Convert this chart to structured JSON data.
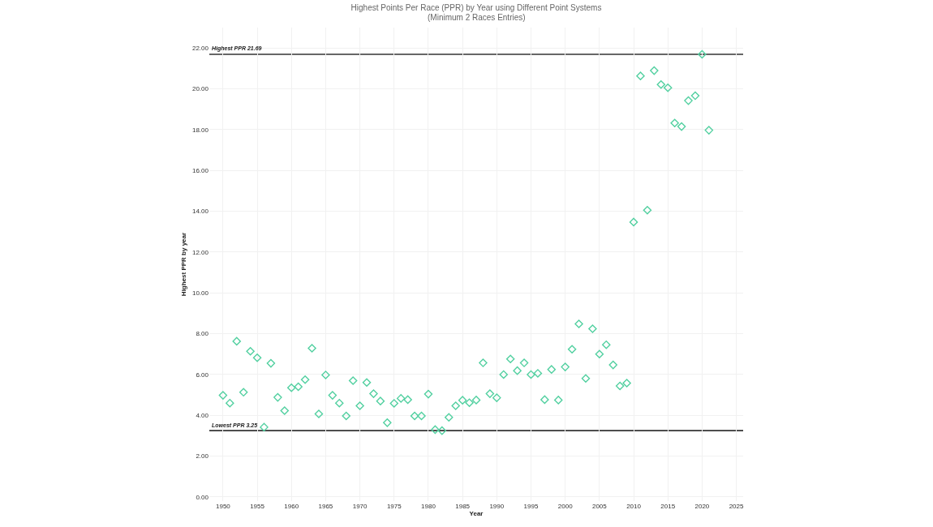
{
  "chart_data": {
    "type": "scatter",
    "title": "Highest Points Per Race (PPR) by Year using Different Point Systems",
    "subtitle": "(Minimum 2 Races Entries)",
    "xlabel": "Year",
    "ylabel": "Highest PPR by year",
    "x": [
      1950,
      1951,
      1952,
      1953,
      1954,
      1955,
      1956,
      1957,
      1958,
      1959,
      1960,
      1961,
      1962,
      1963,
      1964,
      1965,
      1966,
      1967,
      1968,
      1969,
      1970,
      1971,
      1972,
      1973,
      1974,
      1975,
      1976,
      1977,
      1978,
      1979,
      1980,
      1981,
      1982,
      1983,
      1984,
      1985,
      1986,
      1987,
      1988,
      1989,
      1990,
      1991,
      1992,
      1993,
      1994,
      1995,
      1996,
      1997,
      1998,
      1999,
      2000,
      2001,
      2002,
      2003,
      2004,
      2005,
      2006,
      2007,
      2008,
      2009,
      2010,
      2011,
      2012,
      2013,
      2014,
      2015,
      2016,
      2017,
      2018,
      2019,
      2020,
      2021
    ],
    "series": [
      {
        "color": "#52d0a0",
        "values": [
          4.98,
          4.6,
          7.63,
          5.13,
          7.14,
          6.82,
          3.42,
          6.55,
          4.88,
          4.23,
          5.35,
          5.4,
          5.75,
          7.29,
          4.07,
          5.98,
          4.98,
          4.6,
          3.97,
          5.7,
          4.47,
          5.61,
          5.06,
          4.7,
          3.64,
          4.59,
          4.83,
          4.77,
          3.97,
          3.97,
          5.04,
          3.3,
          3.25,
          3.9,
          4.47,
          4.74,
          4.62,
          4.75,
          6.57,
          5.06,
          4.86,
          6.0,
          6.76,
          6.19,
          6.57,
          6.0,
          6.06,
          4.77,
          6.25,
          4.75,
          6.37,
          7.24,
          8.48,
          5.81,
          8.24,
          7.0,
          7.46,
          6.47,
          5.44,
          5.58,
          13.47,
          20.63,
          14.05,
          20.89,
          20.21,
          20.05,
          18.32,
          18.15,
          19.42,
          19.66,
          21.69,
          17.97
        ]
      }
    ],
    "xlim": [
      1948,
      2026
    ],
    "xticks": [
      1950,
      1955,
      1960,
      1965,
      1970,
      1975,
      1980,
      1985,
      1990,
      1995,
      2000,
      2005,
      2010,
      2015,
      2020,
      2025
    ],
    "ylim": [
      -0.2,
      23
    ],
    "yticks": [
      {
        "value": 0,
        "label": "0.00"
      },
      {
        "value": 2,
        "label": "2.00"
      },
      {
        "value": 4,
        "label": "4.00"
      },
      {
        "value": 6,
        "label": "6.00"
      },
      {
        "value": 8,
        "label": "8.00"
      },
      {
        "value": 10,
        "label": "10.00"
      },
      {
        "value": 12,
        "label": "12.00"
      },
      {
        "value": 14,
        "label": "14.00"
      },
      {
        "value": 16,
        "label": "16.00"
      },
      {
        "value": 18,
        "label": "18.00"
      },
      {
        "value": 20,
        "label": "20.00"
      },
      {
        "value": 22,
        "label": "22.00"
      }
    ],
    "ref_lines": [
      {
        "axis": "y",
        "value": 21.69,
        "label": "Highest PPR 21.69",
        "color": "#333333"
      },
      {
        "axis": "y",
        "value": 3.25,
        "label": "Lowest PPR 3.25",
        "color": "#333333"
      }
    ],
    "grid": true,
    "marker": "diamond"
  }
}
